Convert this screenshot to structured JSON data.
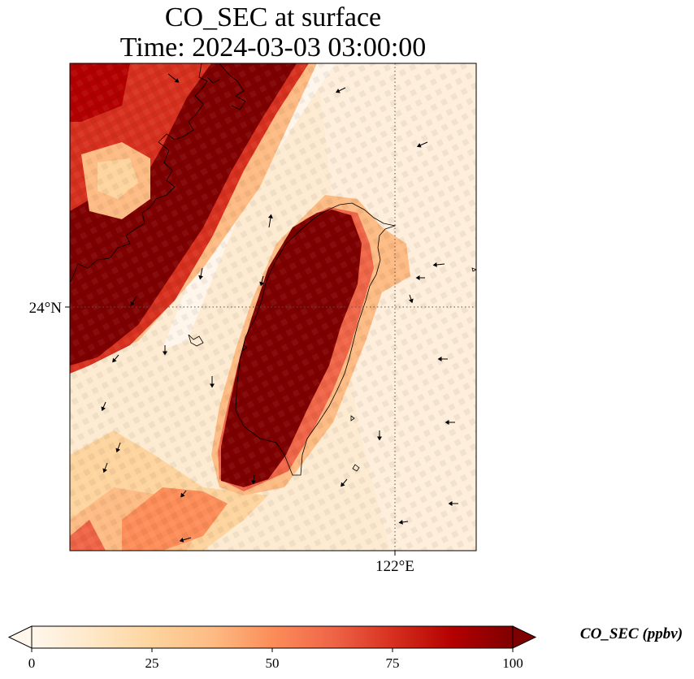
{
  "title_line1": "CO_SEC at surface",
  "title_line2": "Time: 2024-03-03 03:00:00",
  "map": {
    "variable": "CO_SEC",
    "level": "surface",
    "gridlines": "dotted",
    "lat_label": "24°N",
    "lon_label": "122°E",
    "features": [
      "coastline",
      "wind-vectors",
      "concentration-field"
    ],
    "field_pattern": "high concentration over western Taiwan and along the mainland coast to the northwest, low concentration in the strait and east of Taiwan"
  },
  "colorbar": {
    "title": "CO_SEC (ppbv)",
    "ticks": [
      "0",
      "25",
      "50",
      "75",
      "100"
    ],
    "range": [
      0,
      100
    ],
    "colormap": "OrRd",
    "extend": "both",
    "colors": [
      "#fff7ec",
      "#fee8c8",
      "#fdd49e",
      "#fdbb84",
      "#fc8d59",
      "#ef6548",
      "#d7301f",
      "#b30000",
      "#7f0000"
    ]
  }
}
